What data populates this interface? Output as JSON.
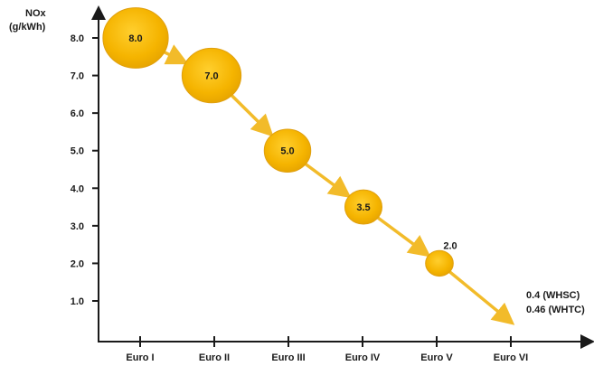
{
  "chart_data": {
    "type": "scatter",
    "ylabel_line1": "NOx",
    "ylabel_line2": "(g/kWh)",
    "xlabel": "",
    "categories": [
      "Euro I",
      "Euro II",
      "Euro III",
      "Euro IV",
      "Euro V",
      "Euro VI"
    ],
    "y_ticks": [
      "8.0",
      "7.0",
      "6.0",
      "5.0",
      "4.0",
      "3.0",
      "2.0",
      "1.0"
    ],
    "y_tick_values": [
      8,
      7,
      6,
      5,
      4,
      3,
      2,
      1
    ],
    "ylim": [
      0,
      8.8
    ],
    "grid": false,
    "legend": "none",
    "series": [
      {
        "values": [
          8.0,
          7.0,
          5.0,
          3.5,
          2.0,
          0.4
        ],
        "labels": [
          "8.0",
          "7.0",
          "5.0",
          "3.5",
          "2.0",
          ""
        ]
      }
    ],
    "euro6_annotations": [
      "0.4   (WHSC)",
      "0.46 (WHTC)"
    ],
    "colors": {
      "bubble_fill": "#f3b400",
      "bubble_edge": "#e0a010",
      "arrow": "#f2bb2a",
      "axis": "#1a1a1a"
    }
  }
}
